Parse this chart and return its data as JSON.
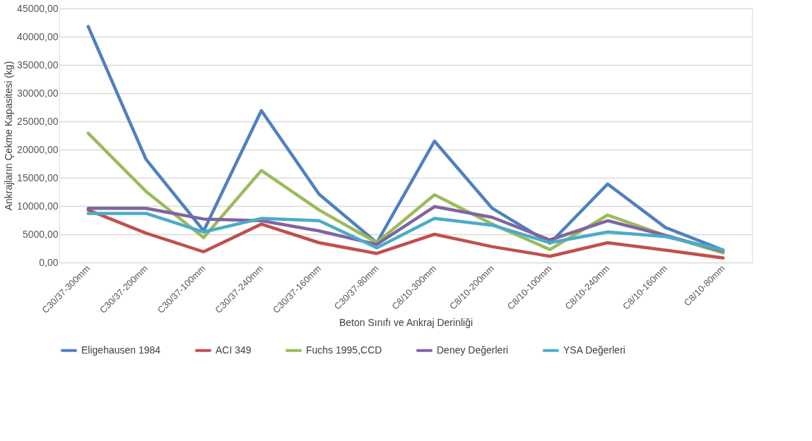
{
  "chart_data": {
    "type": "line",
    "xlabel": "Beton Sınıfı ve Ankraj Derinliği",
    "ylabel": "Ankrajların Çekme Kapasitesi (kg)",
    "categories": [
      "C30/37-300mm",
      "C30/37-200mm",
      "C30/37-100mm",
      "C30/37-240mm",
      "C30/37-160mm",
      "C30/37-80mm",
      "C8/10-300mm",
      "C8/10-200mm",
      "C8/10-100mm",
      "C8/10-240mm",
      "C8/10-160mm",
      "C8/10-80mm"
    ],
    "series": [
      {
        "name": "Eligehausen 1984",
        "color": "#4f81bd",
        "values": [
          41800,
          18300,
          5600,
          26900,
          12100,
          3500,
          21500,
          9600,
          3400,
          13900,
          6200,
          2200
        ]
      },
      {
        "name": "ACI 349",
        "color": "#c0504d",
        "values": [
          9300,
          5200,
          1900,
          6800,
          3500,
          1600,
          5000,
          2800,
          1100,
          3500,
          2200,
          800
        ]
      },
      {
        "name": "Fuchs 1995,CCD",
        "color": "#9bbb59",
        "values": [
          22900,
          12600,
          4400,
          16300,
          9300,
          3500,
          12000,
          6800,
          2300,
          8400,
          4800,
          1700
        ]
      },
      {
        "name": "Deney Değerleri",
        "color": "#8064a2",
        "values": [
          9600,
          9600,
          7700,
          7400,
          5600,
          3200,
          9900,
          8000,
          4000,
          7400,
          4800,
          2000
        ]
      },
      {
        "name": "YSA Değerleri",
        "color": "#4bacc6",
        "values": [
          8700,
          8700,
          5400,
          7800,
          7400,
          2600,
          7800,
          6600,
          3500,
          5400,
          4600,
          2200
        ]
      }
    ],
    "ylim": [
      0,
      45000
    ],
    "yticks": [
      {
        "value": 0,
        "label": "0,00"
      },
      {
        "value": 5000,
        "label": "5000,00"
      },
      {
        "value": 10000,
        "label": "10000,00"
      },
      {
        "value": 15000,
        "label": "15000,00"
      },
      {
        "value": 20000,
        "label": "20000,00"
      },
      {
        "value": 25000,
        "label": "25000,00"
      },
      {
        "value": 30000,
        "label": "30000,00"
      },
      {
        "value": 35000,
        "label": "35000,00"
      },
      {
        "value": 40000,
        "label": "40000,00"
      },
      {
        "value": 45000,
        "label": "45000,00"
      }
    ],
    "grid": "y",
    "legend": "bottom",
    "marker": "none",
    "line_style": "solid"
  }
}
